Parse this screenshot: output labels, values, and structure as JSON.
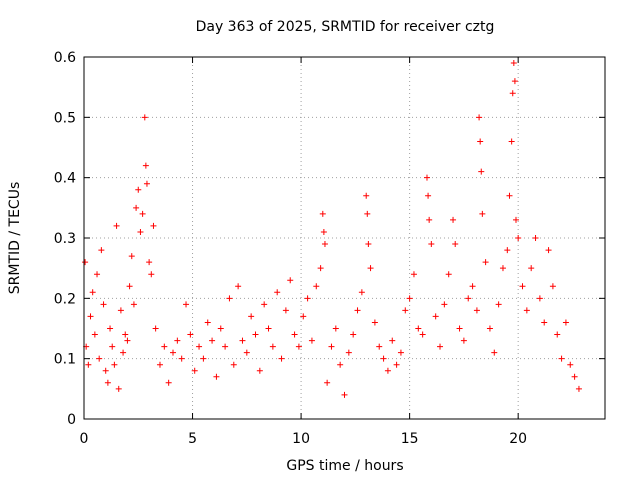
{
  "chart_data": {
    "type": "scatter",
    "title": "Day 363 of 2025, SRMTID for receiver cztg",
    "xlabel": "GPS time / hours",
    "ylabel": "SRMTID / TECUs",
    "xlim": [
      0,
      24
    ],
    "ylim": [
      0,
      0.6
    ],
    "x_ticks": [
      0,
      5,
      10,
      15,
      20
    ],
    "x_tick_labels": [
      "0",
      "5",
      "10",
      "15",
      "20"
    ],
    "y_ticks": [
      0,
      0.1,
      0.2,
      0.3,
      0.4,
      0.5,
      0.6
    ],
    "y_tick_labels": [
      "0",
      "0.1",
      "0.2",
      "0.3",
      "0.4",
      "0.5",
      "0.6"
    ],
    "grid": true,
    "marker": "plus",
    "color": "#ff0000",
    "series": [
      {
        "name": "SRMTID",
        "points": [
          [
            0.05,
            0.26
          ],
          [
            0.1,
            0.12
          ],
          [
            0.2,
            0.09
          ],
          [
            0.3,
            0.17
          ],
          [
            0.4,
            0.21
          ],
          [
            0.5,
            0.14
          ],
          [
            0.6,
            0.24
          ],
          [
            0.7,
            0.1
          ],
          [
            0.8,
            0.28
          ],
          [
            0.9,
            0.19
          ],
          [
            1.0,
            0.08
          ],
          [
            1.1,
            0.06
          ],
          [
            1.2,
            0.15
          ],
          [
            1.3,
            0.12
          ],
          [
            1.4,
            0.09
          ],
          [
            1.5,
            0.32
          ],
          [
            1.6,
            0.05
          ],
          [
            1.7,
            0.18
          ],
          [
            1.8,
            0.11
          ],
          [
            1.9,
            0.14
          ],
          [
            2.0,
            0.13
          ],
          [
            2.1,
            0.22
          ],
          [
            2.2,
            0.27
          ],
          [
            2.3,
            0.19
          ],
          [
            2.4,
            0.35
          ],
          [
            2.5,
            0.38
          ],
          [
            2.6,
            0.31
          ],
          [
            2.7,
            0.34
          ],
          [
            2.8,
            0.5
          ],
          [
            2.85,
            0.42
          ],
          [
            2.9,
            0.39
          ],
          [
            3.0,
            0.26
          ],
          [
            3.1,
            0.24
          ],
          [
            3.2,
            0.32
          ],
          [
            3.3,
            0.15
          ],
          [
            3.5,
            0.09
          ],
          [
            3.7,
            0.12
          ],
          [
            3.9,
            0.06
          ],
          [
            4.1,
            0.11
          ],
          [
            4.3,
            0.13
          ],
          [
            4.5,
            0.1
          ],
          [
            4.7,
            0.19
          ],
          [
            4.9,
            0.14
          ],
          [
            5.1,
            0.08
          ],
          [
            5.3,
            0.12
          ],
          [
            5.5,
            0.1
          ],
          [
            5.7,
            0.16
          ],
          [
            5.9,
            0.13
          ],
          [
            6.1,
            0.07
          ],
          [
            6.3,
            0.15
          ],
          [
            6.5,
            0.12
          ],
          [
            6.7,
            0.2
          ],
          [
            6.9,
            0.09
          ],
          [
            7.1,
            0.22
          ],
          [
            7.3,
            0.13
          ],
          [
            7.5,
            0.11
          ],
          [
            7.7,
            0.17
          ],
          [
            7.9,
            0.14
          ],
          [
            8.1,
            0.08
          ],
          [
            8.3,
            0.19
          ],
          [
            8.5,
            0.15
          ],
          [
            8.7,
            0.12
          ],
          [
            8.9,
            0.21
          ],
          [
            9.1,
            0.1
          ],
          [
            9.3,
            0.18
          ],
          [
            9.5,
            0.23
          ],
          [
            9.7,
            0.14
          ],
          [
            9.9,
            0.12
          ],
          [
            10.1,
            0.17
          ],
          [
            10.3,
            0.2
          ],
          [
            10.5,
            0.13
          ],
          [
            10.7,
            0.22
          ],
          [
            10.9,
            0.25
          ],
          [
            11.0,
            0.34
          ],
          [
            11.05,
            0.31
          ],
          [
            11.1,
            0.29
          ],
          [
            11.2,
            0.06
          ],
          [
            11.4,
            0.12
          ],
          [
            11.6,
            0.15
          ],
          [
            11.8,
            0.09
          ],
          [
            12.0,
            0.04
          ],
          [
            12.2,
            0.11
          ],
          [
            12.4,
            0.14
          ],
          [
            12.6,
            0.18
          ],
          [
            12.8,
            0.21
          ],
          [
            13.0,
            0.37
          ],
          [
            13.05,
            0.34
          ],
          [
            13.1,
            0.29
          ],
          [
            13.2,
            0.25
          ],
          [
            13.4,
            0.16
          ],
          [
            13.6,
            0.12
          ],
          [
            13.8,
            0.1
          ],
          [
            14.0,
            0.08
          ],
          [
            14.2,
            0.13
          ],
          [
            14.4,
            0.09
          ],
          [
            14.6,
            0.11
          ],
          [
            14.8,
            0.18
          ],
          [
            15.0,
            0.2
          ],
          [
            15.2,
            0.24
          ],
          [
            15.4,
            0.15
          ],
          [
            15.6,
            0.14
          ],
          [
            15.8,
            0.4
          ],
          [
            15.85,
            0.37
          ],
          [
            15.9,
            0.33
          ],
          [
            16.0,
            0.29
          ],
          [
            16.2,
            0.17
          ],
          [
            16.4,
            0.12
          ],
          [
            16.6,
            0.19
          ],
          [
            16.8,
            0.24
          ],
          [
            17.0,
            0.33
          ],
          [
            17.1,
            0.29
          ],
          [
            17.3,
            0.15
          ],
          [
            17.5,
            0.13
          ],
          [
            17.7,
            0.2
          ],
          [
            17.9,
            0.22
          ],
          [
            18.1,
            0.18
          ],
          [
            18.2,
            0.5
          ],
          [
            18.25,
            0.46
          ],
          [
            18.3,
            0.41
          ],
          [
            18.35,
            0.34
          ],
          [
            18.5,
            0.26
          ],
          [
            18.7,
            0.15
          ],
          [
            18.9,
            0.11
          ],
          [
            19.1,
            0.19
          ],
          [
            19.3,
            0.25
          ],
          [
            19.5,
            0.28
          ],
          [
            19.6,
            0.37
          ],
          [
            19.7,
            0.46
          ],
          [
            19.75,
            0.54
          ],
          [
            19.8,
            0.59
          ],
          [
            19.85,
            0.56
          ],
          [
            19.9,
            0.33
          ],
          [
            20.0,
            0.3
          ],
          [
            20.2,
            0.22
          ],
          [
            20.4,
            0.18
          ],
          [
            20.6,
            0.25
          ],
          [
            20.8,
            0.3
          ],
          [
            21.0,
            0.2
          ],
          [
            21.2,
            0.16
          ],
          [
            21.4,
            0.28
          ],
          [
            21.6,
            0.22
          ],
          [
            21.8,
            0.14
          ],
          [
            22.0,
            0.1
          ],
          [
            22.2,
            0.16
          ],
          [
            22.4,
            0.09
          ],
          [
            22.6,
            0.07
          ],
          [
            22.8,
            0.05
          ]
        ]
      }
    ]
  }
}
